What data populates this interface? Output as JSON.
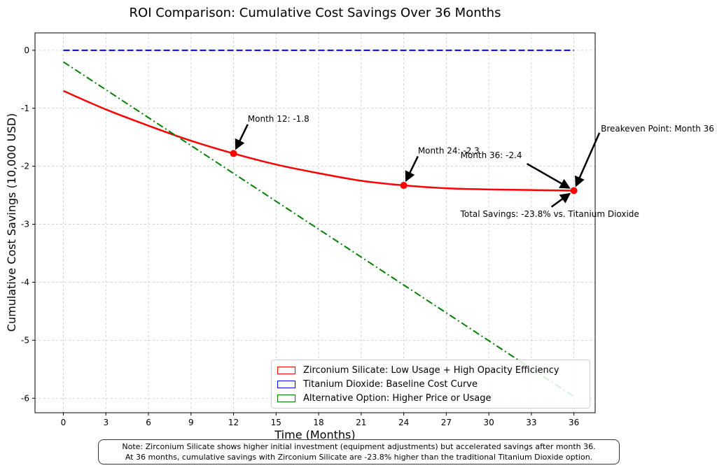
{
  "chart_data": {
    "type": "line",
    "title": "ROI Comparison: Cumulative Cost Savings Over 36 Months",
    "xlabel": "Time (Months)",
    "ylabel": "Cumulative Cost Savings (10,000 USD)",
    "xlim": [
      -2,
      37.5
    ],
    "ylim": [
      -6.25,
      0.3
    ],
    "xticks": [
      0,
      3,
      6,
      9,
      12,
      15,
      18,
      21,
      24,
      27,
      30,
      33,
      36
    ],
    "yticks": [
      0,
      -1,
      -2,
      -3,
      -4,
      -5,
      -6
    ],
    "grid": true,
    "legend_position": "bottom-right",
    "series": [
      {
        "name": "Zirconium Silicate: Low Usage + High Opacity Efficiency",
        "color": "#ff0000",
        "style": "solid",
        "x": [
          0,
          3,
          6,
          9,
          12,
          15,
          18,
          21,
          24,
          27,
          30,
          33,
          36
        ],
        "values": [
          -0.7,
          -1.02,
          -1.3,
          -1.56,
          -1.78,
          -1.97,
          -2.12,
          -2.25,
          -2.33,
          -2.38,
          -2.4,
          -2.41,
          -2.42
        ]
      },
      {
        "name": "Titanium Dioxide: Baseline Cost Curve",
        "color": "#0000ff",
        "style": "dashed",
        "x": [
          0,
          36
        ],
        "values": [
          0,
          0
        ]
      },
      {
        "name": "Alternative Option: Higher Price or Usage",
        "color": "#008000",
        "style": "dashdot",
        "x": [
          0,
          36
        ],
        "values": [
          -0.2,
          -5.97
        ]
      }
    ],
    "markers": [
      {
        "x": 12,
        "y": -1.78
      },
      {
        "x": 24,
        "y": -2.33
      },
      {
        "x": 36,
        "y": -2.42
      }
    ],
    "annotations": [
      {
        "text": "Month 12: -1.8",
        "x": 12,
        "y": -1.78,
        "tx": 13,
        "ty": -1.23
      },
      {
        "text": "Month 24: -2.3",
        "x": 24,
        "y": -2.33,
        "tx": 25,
        "ty": -1.78
      },
      {
        "text": "Month 36: -2.4",
        "x": 36,
        "y": -2.42,
        "tx": 28,
        "ty": -1.86
      },
      {
        "text": "Breakeven Point: Month 36",
        "x": 36,
        "y": -2.42,
        "tx": 37.9,
        "ty": -1.4
      },
      {
        "text": "Total Savings: -23.8% vs. Titanium Dioxide",
        "x": 36,
        "y": -2.42,
        "tx": 28,
        "ty": -2.87
      }
    ]
  },
  "note": {
    "line1": "Note: Zirconium Silicate shows higher initial investment (equipment adjustments) but accelerated savings after month 36.",
    "line2": "At 36 months, cumulative savings with Zirconium Silicate are -23.8% higher than the traditional Titanium Dioxide option."
  }
}
